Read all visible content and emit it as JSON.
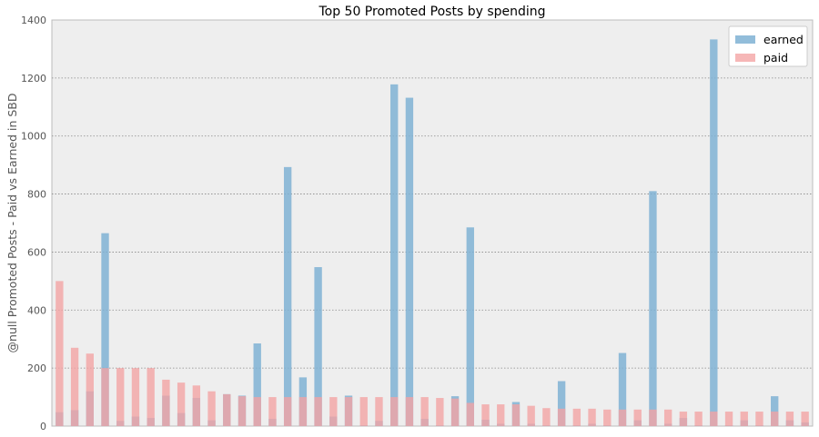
{
  "chart_data": {
    "type": "bar",
    "title": "Top 50 Promoted Posts by spending",
    "xlabel": "",
    "ylabel": "@null Promoted Posts - Paid vs Earned in SBD",
    "ylim": [
      0,
      1400
    ],
    "yticks": [
      0,
      200,
      400,
      600,
      800,
      1000,
      1200,
      1400
    ],
    "grid": true,
    "legend_position": "top-right",
    "series": [
      {
        "name": "earned",
        "color": "#7fb2d4",
        "values": [
          48,
          55,
          120,
          665,
          18,
          33,
          28,
          105,
          45,
          97,
          20,
          110,
          105,
          285,
          25,
          893,
          168,
          548,
          33,
          105,
          3,
          18,
          1178,
          1132,
          25,
          3,
          103,
          685,
          22,
          8,
          83,
          8,
          3,
          155,
          3,
          8,
          3,
          252,
          20,
          810,
          8,
          28,
          3,
          1333,
          3,
          20,
          3,
          103,
          20,
          13
        ]
      },
      {
        "name": "paid",
        "color": "#f4a3a3",
        "values": [
          500,
          270,
          250,
          200,
          200,
          200,
          200,
          160,
          150,
          140,
          120,
          110,
          103,
          100,
          100,
          100,
          100,
          100,
          100,
          100,
          100,
          100,
          100,
          100,
          100,
          97,
          95,
          80,
          75,
          75,
          75,
          70,
          62,
          60,
          60,
          60,
          57,
          57,
          57,
          57,
          57,
          50,
          50,
          50,
          50,
          50,
          50,
          50,
          50,
          50
        ]
      }
    ]
  }
}
